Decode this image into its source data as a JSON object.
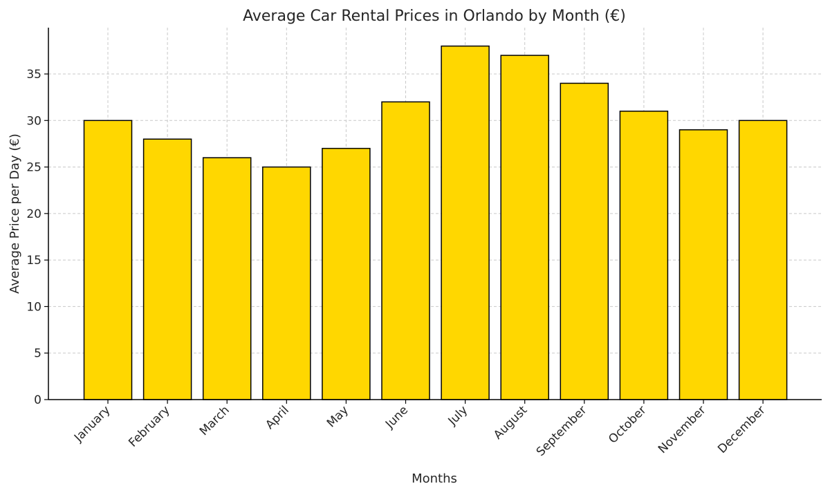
{
  "chart_data": {
    "type": "bar",
    "title": "Average Car Rental Prices in Orlando by Month (€)",
    "xlabel": "Months",
    "ylabel": "Average Price per Day (€)",
    "categories": [
      "January",
      "February",
      "March",
      "April",
      "May",
      "June",
      "July",
      "August",
      "September",
      "October",
      "November",
      "December"
    ],
    "values": [
      30,
      28,
      26,
      25,
      27,
      32,
      38,
      37,
      34,
      31,
      29,
      30
    ],
    "ylim": [
      0,
      40
    ],
    "yticks": [
      0,
      5,
      10,
      15,
      20,
      25,
      30,
      35
    ],
    "grid": true,
    "bar_color": "#FFD700",
    "edge_color": "#000000"
  }
}
